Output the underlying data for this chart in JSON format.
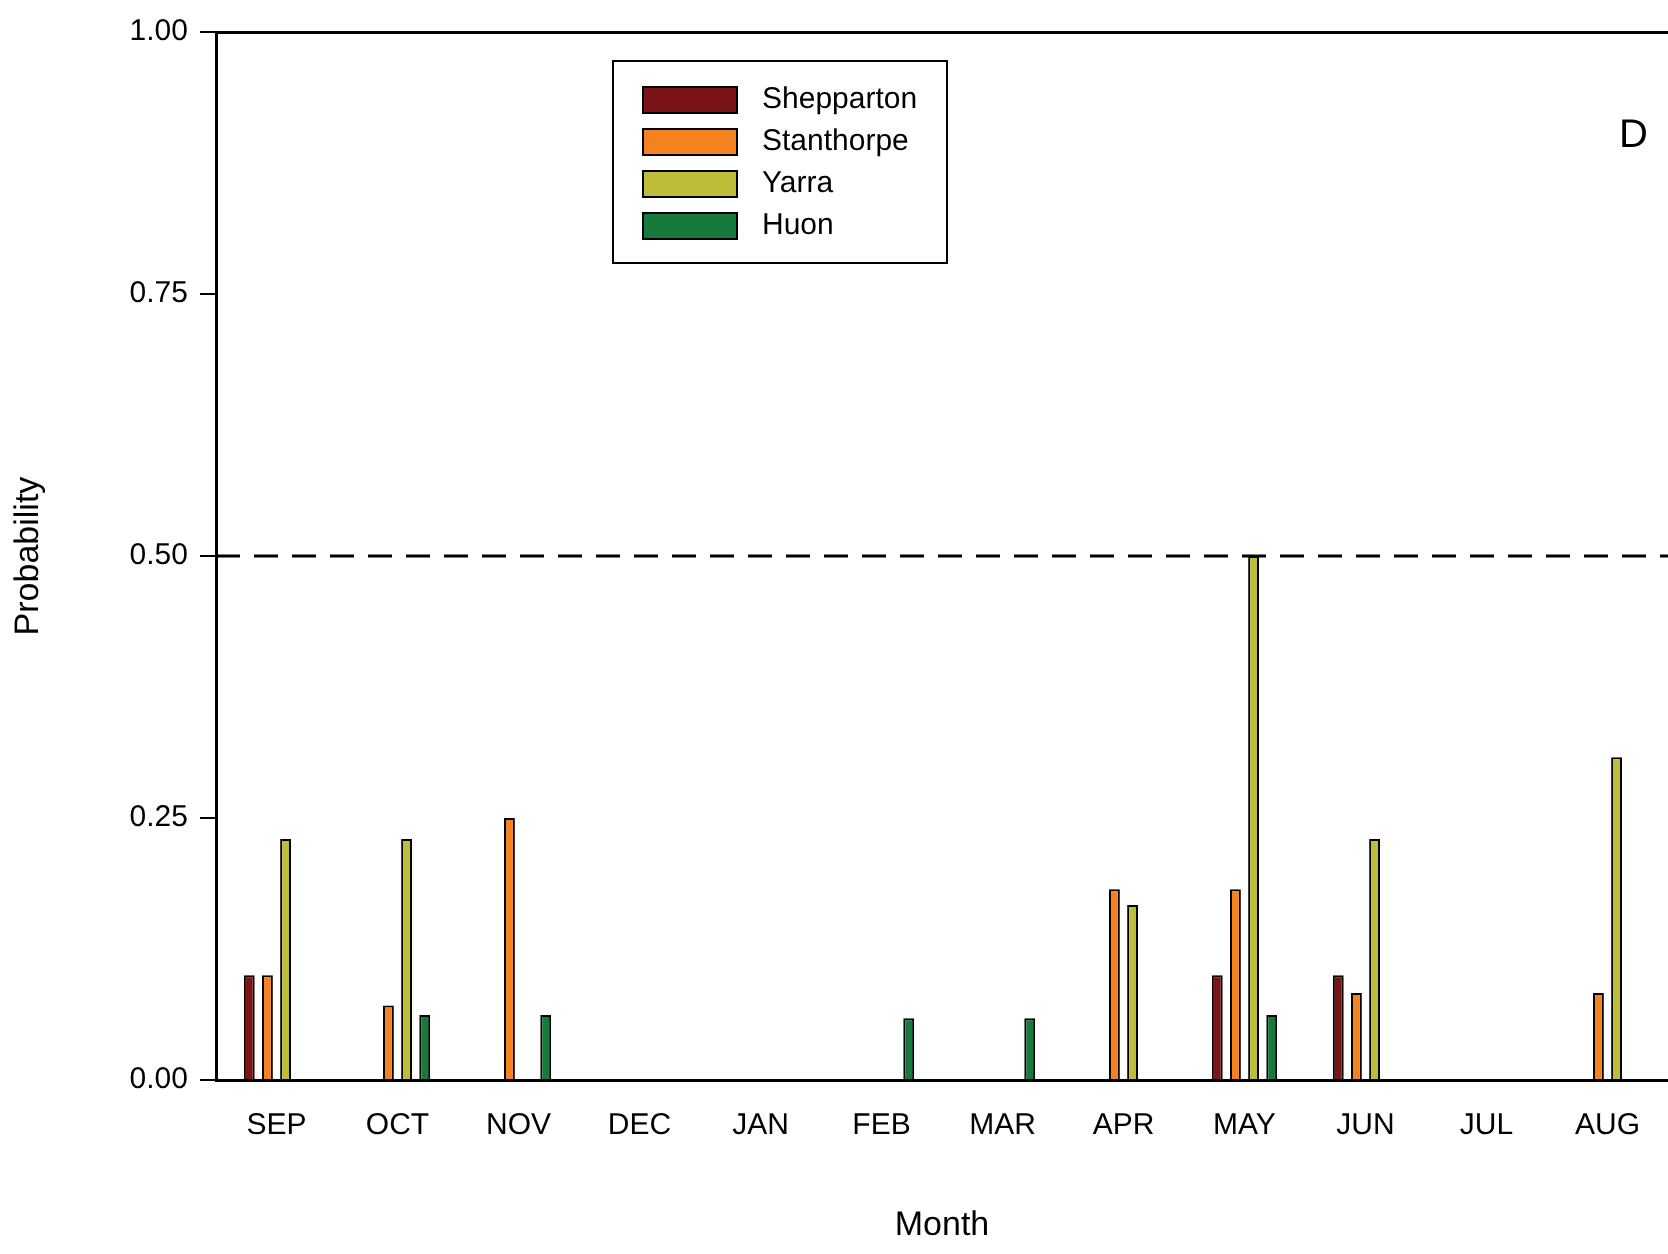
{
  "chart_data": {
    "type": "bar",
    "xlabel": "Month",
    "ylabel": "Probability",
    "categories": [
      "SEP",
      "OCT",
      "NOV",
      "DEC",
      "JAN",
      "FEB",
      "MAR",
      "APR",
      "MAY",
      "JUN",
      "JUL",
      "AUG"
    ],
    "series": [
      {
        "name": "Shepparton",
        "color": "#7b1416",
        "values": [
          0.1,
          null,
          null,
          null,
          null,
          null,
          null,
          null,
          0.1,
          0.1,
          null,
          null
        ]
      },
      {
        "name": "Stanthorpe",
        "color": "#f58220",
        "values": [
          0.1,
          0.071,
          0.25,
          null,
          null,
          null,
          null,
          0.182,
          0.182,
          0.083,
          null,
          0.083
        ]
      },
      {
        "name": "Yarra",
        "color": "#bdbd3a",
        "values": [
          0.23,
          0.23,
          null,
          null,
          null,
          null,
          null,
          0.167,
          0.5,
          0.23,
          null,
          0.308
        ]
      },
      {
        "name": "Huon",
        "color": "#177a3c",
        "values": [
          null,
          0.062,
          0.062,
          null,
          null,
          0.059,
          0.059,
          null,
          0.062,
          null,
          null,
          null
        ]
      }
    ],
    "ylim": [
      0,
      1
    ],
    "yticks": [
      {
        "value": 0,
        "label": "0.00"
      },
      {
        "value": 0.25,
        "label": "0.25"
      },
      {
        "value": 0.5,
        "label": "0.50"
      },
      {
        "value": 0.75,
        "label": "0.75"
      },
      {
        "value": 1,
        "label": "1.00"
      }
    ],
    "ref_lines": [
      {
        "axis": "y",
        "value": 0.5,
        "color": "#000000",
        "line_style": "dashed"
      }
    ],
    "annotations": [
      "D"
    ],
    "legend": "top",
    "grid": false
  }
}
